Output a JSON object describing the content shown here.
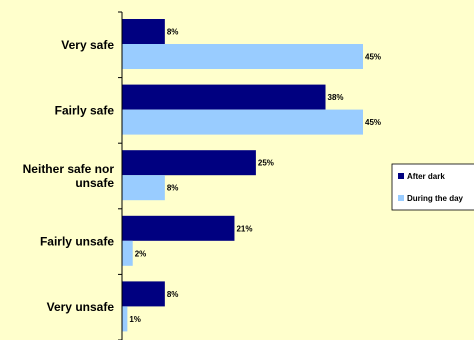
{
  "chart_data": {
    "type": "bar",
    "orientation": "horizontal",
    "categories": [
      "Very safe",
      "Fairly safe",
      "Neither safe nor unsafe",
      "Fairly unsafe",
      "Very unsafe"
    ],
    "category_lines": [
      [
        "Very safe"
      ],
      [
        "Fairly safe"
      ],
      [
        "Neither safe nor",
        "unsafe"
      ],
      [
        "Fairly unsafe"
      ],
      [
        "Very unsafe"
      ]
    ],
    "series": [
      {
        "name": "After dark",
        "color": "#000080",
        "values": [
          8,
          38,
          25,
          21,
          8
        ],
        "labels": [
          "8%",
          "38%",
          "25%",
          "21%",
          "8%"
        ]
      },
      {
        "name": "During the day",
        "color": "#99ccff",
        "values": [
          45,
          45,
          8,
          2,
          1
        ],
        "labels": [
          "45%",
          "45%",
          "8%",
          "2%",
          "1%"
        ]
      }
    ],
    "xlim": [
      0,
      50
    ],
    "title": "",
    "xlabel": "",
    "ylabel": "",
    "grid": false,
    "legend_position": "right"
  }
}
